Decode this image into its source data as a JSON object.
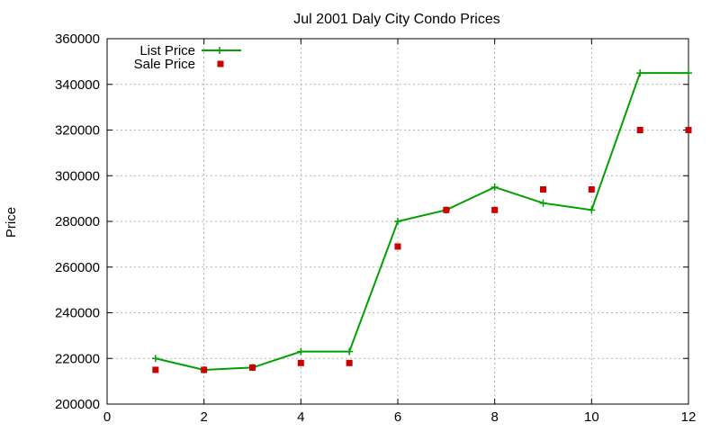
{
  "chart_data": {
    "type": "line",
    "title": "Jul 2001 Daly City Condo Prices",
    "xlabel": "",
    "ylabel": "Price",
    "xlim": [
      0,
      12
    ],
    "ylim": [
      200000,
      360000
    ],
    "x_ticks": [
      0,
      2,
      4,
      6,
      8,
      10,
      12
    ],
    "y_ticks": [
      200000,
      220000,
      240000,
      260000,
      280000,
      300000,
      320000,
      340000,
      360000
    ],
    "grid": true,
    "legend_position": "top-left",
    "series": [
      {
        "name": "List Price",
        "style": "line-with-plus-markers",
        "color": "#00a000",
        "x": [
          1,
          2,
          3,
          4,
          5,
          6,
          7,
          8,
          9,
          10,
          11,
          12
        ],
        "y": [
          220000,
          215000,
          216000,
          223000,
          223000,
          280000,
          285000,
          295000,
          288000,
          285000,
          345000,
          345000
        ]
      },
      {
        "name": "Sale Price",
        "style": "square-markers",
        "color": "#cc0000",
        "x": [
          1,
          2,
          3,
          4,
          5,
          6,
          7,
          8,
          9,
          10,
          11,
          12
        ],
        "y": [
          215000,
          215000,
          216000,
          218000,
          218000,
          269000,
          285000,
          285000,
          294000,
          294000,
          320000,
          320000
        ]
      }
    ]
  }
}
